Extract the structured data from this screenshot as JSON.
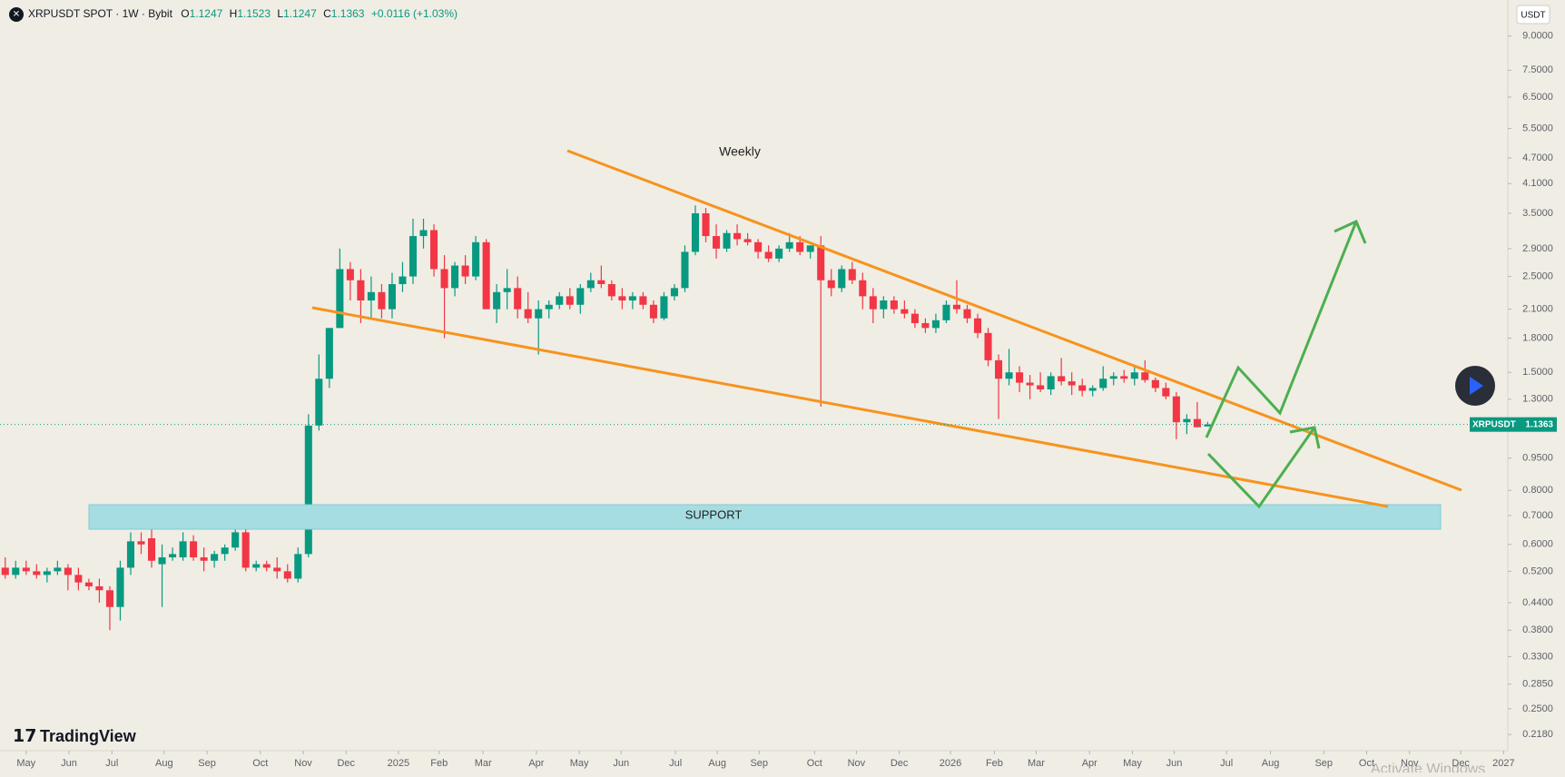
{
  "header": {
    "symbol": "XRPUSDT SPOT · 1W · Bybit",
    "o": "O",
    "h": "H",
    "l": "L",
    "c": "C",
    "change": "+0.0116 (+1.03%)",
    "currency": "USDT",
    "brand": "TradingView",
    "watermark": "Activate Windows"
  },
  "chart_data": {
    "type": "candlestick",
    "name": "XRPUSDT",
    "up_color": "#089981",
    "down_color": "#f23645",
    "log_scale": true,
    "annotations": [
      "Weekly",
      "SUPPORT"
    ],
    "ylim": [
      0.2,
      10.9
    ],
    "xlim": [
      -0.5,
      143.7
    ],
    "yticks": [
      {
        "value": 9,
        "label": "9.0000"
      },
      {
        "value": 7.5,
        "label": "7.5000"
      },
      {
        "value": 6.5,
        "label": "6.5000"
      },
      {
        "value": 5.5,
        "label": "5.5000"
      },
      {
        "value": 4.7,
        "label": "4.7000"
      },
      {
        "value": 4.1,
        "label": "4.1000"
      },
      {
        "value": 3.5,
        "label": "3.5000"
      },
      {
        "value": 2.9,
        "label": "2.9000"
      },
      {
        "value": 2.5,
        "label": "2.5000"
      },
      {
        "value": 2.1,
        "label": "2.1000"
      },
      {
        "value": 1.8,
        "label": "1.8000"
      },
      {
        "value": 1.5,
        "label": "1.5000"
      },
      {
        "value": 1.3,
        "label": "1.3000"
      },
      {
        "value": 0.95,
        "label": "0.9500"
      },
      {
        "value": 0.8,
        "label": "0.8000"
      },
      {
        "value": 0.7,
        "label": "0.7000"
      },
      {
        "value": 0.6,
        "label": "0.6000"
      },
      {
        "value": 0.52,
        "label": "0.5200"
      },
      {
        "value": 0.44,
        "label": "0.4400"
      },
      {
        "value": 0.38,
        "label": "0.3800"
      },
      {
        "value": 0.33,
        "label": "0.3300"
      },
      {
        "value": 0.285,
        "label": "0.2850"
      },
      {
        "value": 0.25,
        "label": "0.2500"
      },
      {
        "value": 0.218,
        "label": "0.2180"
      }
    ],
    "xticks": [
      {
        "value": 2.0,
        "label": "May"
      },
      {
        "value": 6.1,
        "label": "Jun"
      },
      {
        "value": 10.2,
        "label": "Jul"
      },
      {
        "value": 15.2,
        "label": "Aug"
      },
      {
        "value": 19.3,
        "label": "Sep"
      },
      {
        "value": 24.4,
        "label": "Oct"
      },
      {
        "value": 28.5,
        "label": "Nov"
      },
      {
        "value": 32.6,
        "label": "Dec"
      },
      {
        "value": 37.6,
        "label": "2025"
      },
      {
        "value": 41.5,
        "label": "Feb"
      },
      {
        "value": 45.7,
        "label": "Mar"
      },
      {
        "value": 50.8,
        "label": "Apr"
      },
      {
        "value": 54.9,
        "label": "May"
      },
      {
        "value": 58.9,
        "label": "Jun"
      },
      {
        "value": 64.1,
        "label": "Jul"
      },
      {
        "value": 68.1,
        "label": "Aug"
      },
      {
        "value": 72.1,
        "label": "Sep"
      },
      {
        "value": 77.4,
        "label": "Oct"
      },
      {
        "value": 81.4,
        "label": "Nov"
      },
      {
        "value": 85.5,
        "label": "Dec"
      },
      {
        "value": 90.4,
        "label": "2026"
      },
      {
        "value": 94.6,
        "label": "Feb"
      },
      {
        "value": 98.6,
        "label": "Mar"
      },
      {
        "value": 103.7,
        "label": "Apr"
      },
      {
        "value": 107.8,
        "label": "May"
      },
      {
        "value": 111.8,
        "label": "Jun"
      },
      {
        "value": 116.8,
        "label": "Jul"
      },
      {
        "value": 121.0,
        "label": "Aug"
      },
      {
        "value": 126.1,
        "label": "Sep"
      },
      {
        "value": 130.2,
        "label": "Oct"
      },
      {
        "value": 134.3,
        "label": "Nov"
      },
      {
        "value": 139.2,
        "label": "Dec"
      },
      {
        "value": 143.3,
        "label": "2027"
      }
    ],
    "candles": [
      [
        0.53,
        0.56,
        0.5,
        0.51
      ],
      [
        0.51,
        0.55,
        0.5,
        0.53
      ],
      [
        0.53,
        0.55,
        0.51,
        0.52
      ],
      [
        0.52,
        0.54,
        0.5,
        0.51
      ],
      [
        0.51,
        0.53,
        0.49,
        0.52
      ],
      [
        0.52,
        0.55,
        0.51,
        0.53
      ],
      [
        0.53,
        0.54,
        0.47,
        0.51
      ],
      [
        0.51,
        0.53,
        0.47,
        0.49
      ],
      [
        0.49,
        0.5,
        0.47,
        0.48
      ],
      [
        0.48,
        0.5,
        0.44,
        0.47
      ],
      [
        0.47,
        0.48,
        0.38,
        0.43
      ],
      [
        0.43,
        0.55,
        0.4,
        0.53
      ],
      [
        0.53,
        0.64,
        0.51,
        0.61
      ],
      [
        0.61,
        0.64,
        0.57,
        0.6
      ],
      [
        0.62,
        0.67,
        0.53,
        0.55
      ],
      [
        0.54,
        0.6,
        0.43,
        0.56
      ],
      [
        0.56,
        0.59,
        0.55,
        0.57
      ],
      [
        0.56,
        0.64,
        0.55,
        0.61
      ],
      [
        0.61,
        0.63,
        0.55,
        0.56
      ],
      [
        0.56,
        0.59,
        0.52,
        0.55
      ],
      [
        0.55,
        0.58,
        0.53,
        0.57
      ],
      [
        0.57,
        0.6,
        0.55,
        0.59
      ],
      [
        0.59,
        0.66,
        0.58,
        0.64
      ],
      [
        0.64,
        0.66,
        0.52,
        0.53
      ],
      [
        0.53,
        0.55,
        0.52,
        0.54
      ],
      [
        0.54,
        0.55,
        0.52,
        0.53
      ],
      [
        0.53,
        0.56,
        0.5,
        0.52
      ],
      [
        0.52,
        0.54,
        0.49,
        0.5
      ],
      [
        0.5,
        0.59,
        0.49,
        0.57
      ],
      [
        0.57,
        1.2,
        0.56,
        1.13
      ],
      [
        1.13,
        1.65,
        1.1,
        1.45
      ],
      [
        1.45,
        1.9,
        1.38,
        1.9
      ],
      [
        1.9,
        2.9,
        1.9,
        2.6
      ],
      [
        2.6,
        2.7,
        2.2,
        2.45
      ],
      [
        2.45,
        2.6,
        1.95,
        2.2
      ],
      [
        2.2,
        2.5,
        2.0,
        2.3
      ],
      [
        2.3,
        2.4,
        2.0,
        2.1
      ],
      [
        2.1,
        2.55,
        2.0,
        2.4
      ],
      [
        2.4,
        2.7,
        2.3,
        2.5
      ],
      [
        2.5,
        3.4,
        2.4,
        3.1
      ],
      [
        3.1,
        3.4,
        2.9,
        3.2
      ],
      [
        3.2,
        3.3,
        2.5,
        2.6
      ],
      [
        2.6,
        2.8,
        1.8,
        2.35
      ],
      [
        2.35,
        2.7,
        2.25,
        2.65
      ],
      [
        2.65,
        2.8,
        2.4,
        2.5
      ],
      [
        2.5,
        3.1,
        2.45,
        3.0
      ],
      [
        3.0,
        3.05,
        2.1,
        2.1
      ],
      [
        2.1,
        2.4,
        1.95,
        2.3
      ],
      [
        2.3,
        2.6,
        2.1,
        2.35
      ],
      [
        2.35,
        2.5,
        2.0,
        2.1
      ],
      [
        2.1,
        2.3,
        1.95,
        2.0
      ],
      [
        2.0,
        2.2,
        1.65,
        2.1
      ],
      [
        2.1,
        2.2,
        2.0,
        2.15
      ],
      [
        2.15,
        2.3,
        2.1,
        2.25
      ],
      [
        2.25,
        2.35,
        2.1,
        2.15
      ],
      [
        2.15,
        2.4,
        2.05,
        2.35
      ],
      [
        2.35,
        2.55,
        2.3,
        2.45
      ],
      [
        2.45,
        2.65,
        2.35,
        2.4
      ],
      [
        2.4,
        2.45,
        2.2,
        2.25
      ],
      [
        2.25,
        2.35,
        2.1,
        2.2
      ],
      [
        2.2,
        2.3,
        2.1,
        2.25
      ],
      [
        2.25,
        2.3,
        2.1,
        2.15
      ],
      [
        2.15,
        2.2,
        1.95,
        2.0
      ],
      [
        2.0,
        2.3,
        1.98,
        2.25
      ],
      [
        2.25,
        2.4,
        2.2,
        2.35
      ],
      [
        2.35,
        2.95,
        2.3,
        2.85
      ],
      [
        2.85,
        3.65,
        2.8,
        3.5
      ],
      [
        3.5,
        3.6,
        3.0,
        3.1
      ],
      [
        3.1,
        3.3,
        2.75,
        2.9
      ],
      [
        2.9,
        3.2,
        2.85,
        3.15
      ],
      [
        3.15,
        3.3,
        2.95,
        3.05
      ],
      [
        3.05,
        3.15,
        2.95,
        3.0
      ],
      [
        3.0,
        3.05,
        2.75,
        2.85
      ],
      [
        2.85,
        2.95,
        2.7,
        2.75
      ],
      [
        2.75,
        2.95,
        2.7,
        2.9
      ],
      [
        2.9,
        3.15,
        2.85,
        3.0
      ],
      [
        3.0,
        3.1,
        2.8,
        2.85
      ],
      [
        2.85,
        2.95,
        2.75,
        2.95
      ],
      [
        2.95,
        3.1,
        1.25,
        2.45
      ],
      [
        2.45,
        2.6,
        2.25,
        2.35
      ],
      [
        2.35,
        2.65,
        2.3,
        2.6
      ],
      [
        2.6,
        2.7,
        2.4,
        2.45
      ],
      [
        2.45,
        2.55,
        2.1,
        2.25
      ],
      [
        2.25,
        2.35,
        1.95,
        2.1
      ],
      [
        2.1,
        2.25,
        2.0,
        2.2
      ],
      [
        2.2,
        2.25,
        2.05,
        2.1
      ],
      [
        2.1,
        2.2,
        2.0,
        2.05
      ],
      [
        2.05,
        2.1,
        1.9,
        1.95
      ],
      [
        1.95,
        2.0,
        1.85,
        1.9
      ],
      [
        1.9,
        2.05,
        1.85,
        1.98
      ],
      [
        1.98,
        2.2,
        1.95,
        2.15
      ],
      [
        2.15,
        2.45,
        2.05,
        2.1
      ],
      [
        2.1,
        2.15,
        1.95,
        2.0
      ],
      [
        2.0,
        2.05,
        1.8,
        1.85
      ],
      [
        1.85,
        1.9,
        1.55,
        1.6
      ],
      [
        1.6,
        1.65,
        1.17,
        1.45
      ],
      [
        1.45,
        1.7,
        1.4,
        1.5
      ],
      [
        1.5,
        1.55,
        1.35,
        1.42
      ],
      [
        1.42,
        1.48,
        1.3,
        1.4
      ],
      [
        1.4,
        1.5,
        1.35,
        1.37
      ],
      [
        1.37,
        1.5,
        1.33,
        1.47
      ],
      [
        1.47,
        1.62,
        1.4,
        1.43
      ],
      [
        1.43,
        1.5,
        1.33,
        1.4
      ],
      [
        1.4,
        1.45,
        1.32,
        1.36
      ],
      [
        1.36,
        1.4,
        1.32,
        1.38
      ],
      [
        1.38,
        1.55,
        1.36,
        1.45
      ],
      [
        1.45,
        1.5,
        1.4,
        1.47
      ],
      [
        1.47,
        1.52,
        1.42,
        1.45
      ],
      [
        1.45,
        1.55,
        1.4,
        1.5
      ],
      [
        1.5,
        1.6,
        1.42,
        1.44
      ],
      [
        1.44,
        1.46,
        1.35,
        1.38
      ],
      [
        1.38,
        1.42,
        1.3,
        1.32
      ],
      [
        1.32,
        1.35,
        1.05,
        1.15
      ],
      [
        1.15,
        1.2,
        1.08,
        1.17
      ],
      [
        1.17,
        1.28,
        1.12,
        1.12
      ],
      [
        1.1247,
        1.1523,
        1.1247,
        1.1363
      ]
    ]
  }
}
